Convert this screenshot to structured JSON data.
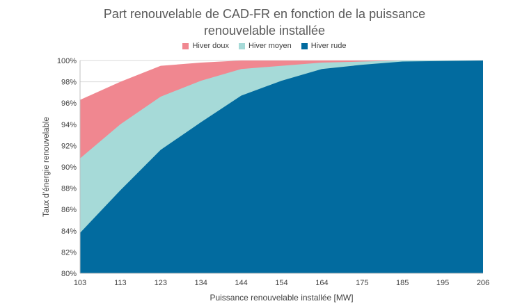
{
  "chart_data": {
    "type": "area",
    "title_line1": "Part renouvelable de CAD-FR en fonction de la puissance",
    "title_line2": "renouvelable installée",
    "xlabel": "Puissance renouvelable installée [MW]",
    "ylabel": "Taux d’énergie renouvelable",
    "x_tick_labels": [
      "103",
      "113",
      "123",
      "134",
      "144",
      "154",
      "164",
      "175",
      "185",
      "195",
      "206"
    ],
    "y_tick_labels": [
      "80%",
      "82%",
      "84%",
      "86%",
      "88%",
      "90%",
      "92%",
      "94%",
      "96%",
      "98%",
      "100%"
    ],
    "ylim": [
      80,
      100
    ],
    "grid": "horizontal",
    "legend_position": "top",
    "series": [
      {
        "name": "Hiver doux",
        "color": "#F08790",
        "values": [
          96.3,
          98.0,
          99.5,
          99.8,
          100.0,
          100.0,
          100.0,
          100.0,
          100.0,
          100.0,
          100.0
        ]
      },
      {
        "name": "Hiver moyen",
        "color": "#A6DAD8",
        "values": [
          90.8,
          94.0,
          96.6,
          98.1,
          99.2,
          99.5,
          99.8,
          99.9,
          100.0,
          100.0,
          100.0
        ]
      },
      {
        "name": "Hiver rude",
        "color": "#026B9F",
        "values": [
          83.8,
          87.8,
          91.6,
          94.2,
          96.7,
          98.1,
          99.2,
          99.6,
          99.9,
          99.95,
          100.0
        ]
      }
    ]
  }
}
